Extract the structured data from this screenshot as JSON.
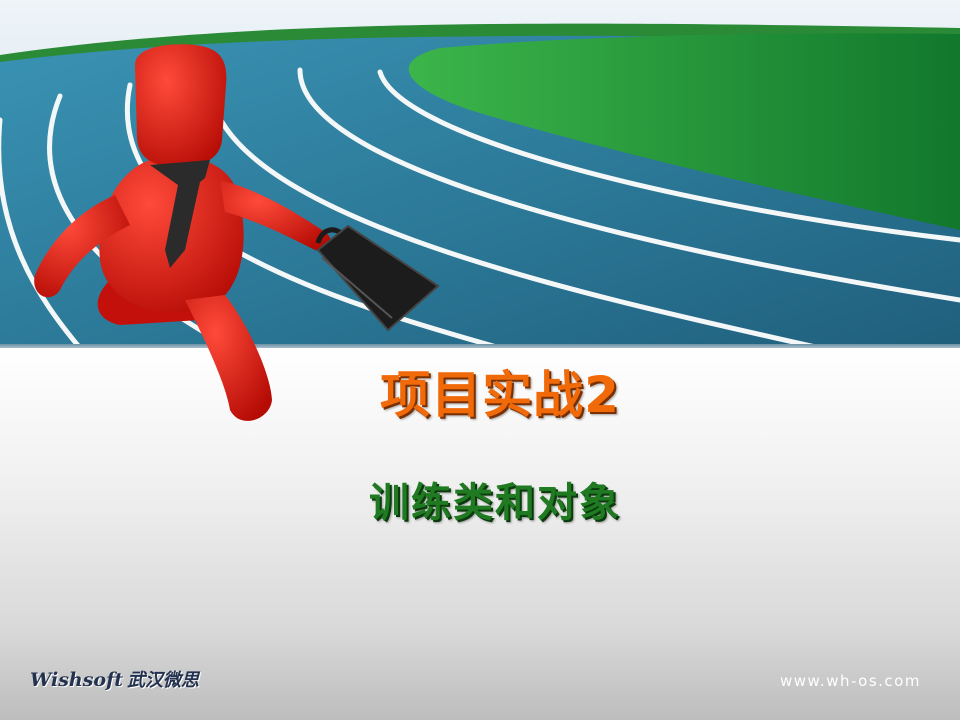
{
  "slide": {
    "title": "项目实战2",
    "subtitle": "训练类和对象"
  },
  "footer": {
    "brand_en": "Wishsoft",
    "brand_cn": "武汉微思",
    "website": "www.wh-os.com"
  },
  "colors": {
    "title": "#f06a0a",
    "subtitle": "#1f7a22",
    "track": "#2e7fa0",
    "grass": "#1f9a3a",
    "runner": "#e2150d"
  },
  "image": {
    "banner": "running-track-image",
    "figure": "red-businessman-running-with-briefcase"
  }
}
